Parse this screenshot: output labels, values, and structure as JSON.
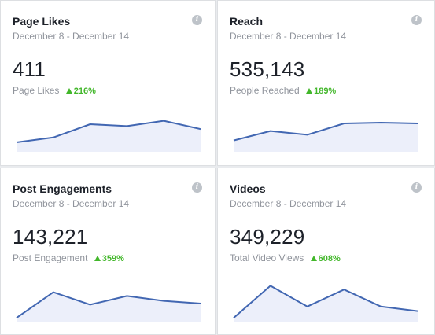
{
  "cards": [
    {
      "title": "Page Likes",
      "date_range": "December 8 - December 14",
      "value": "411",
      "metric_label": "Page Likes",
      "change": "216%",
      "trend": [
        0.25,
        0.38,
        0.73,
        0.68,
        0.82,
        0.6
      ]
    },
    {
      "title": "Reach",
      "date_range": "December 8 - December 14",
      "value": "535,143",
      "metric_label": "People Reached",
      "change": "189%",
      "trend": [
        0.3,
        0.55,
        0.45,
        0.75,
        0.77,
        0.75
      ]
    },
    {
      "title": "Post Engagements",
      "date_range": "December 8 - December 14",
      "value": "143,221",
      "metric_label": "Post Engagement",
      "change": "359%",
      "trend": [
        0.1,
        0.78,
        0.45,
        0.68,
        0.55,
        0.48
      ]
    },
    {
      "title": "Videos",
      "date_range": "December 8 - December 14",
      "value": "349,229",
      "metric_label": "Total Video Views",
      "change": "608%",
      "trend": [
        0.1,
        0.95,
        0.4,
        0.85,
        0.4,
        0.28
      ]
    }
  ],
  "colors": {
    "accent_line": "#4267b2",
    "fill": "#eceffa",
    "positive": "#42b72a"
  },
  "icons": {
    "info": "i",
    "up": "triangle-up-icon"
  }
}
